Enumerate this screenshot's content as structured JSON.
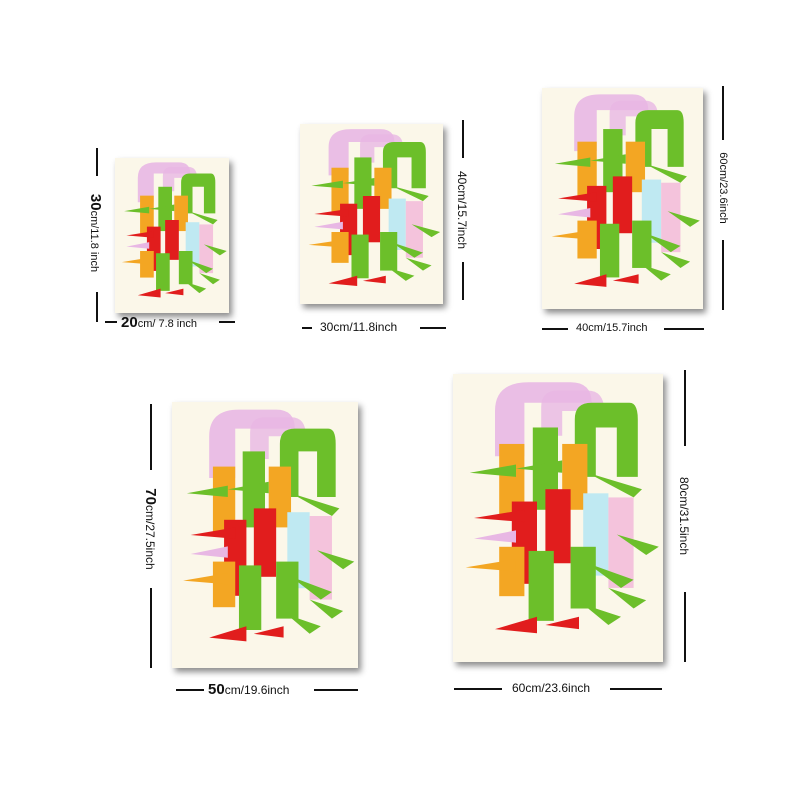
{
  "posters": [
    {
      "id": "20x30",
      "width": "20",
      "width_unit": "cm/ 7.8 inch",
      "height": "30",
      "height_unit": "cm/11.8 inch"
    },
    {
      "id": "30x40",
      "width": "30cm/11.8inch",
      "height": "40cm/15.7inch"
    },
    {
      "id": "40x60",
      "width": "40cm/15.7inch",
      "height": "60cm/23.6inch"
    },
    {
      "id": "50x70",
      "width": "50",
      "width_unit": "cm/19.6inch",
      "height": "70",
      "height_unit": "cm/27.5inch"
    },
    {
      "id": "60x80",
      "width": "60cm/23.6inch",
      "height": "80cm/31.5inch"
    }
  ],
  "colors": {
    "paper": "#fbf7e9",
    "pink": "#e8b7e4",
    "green": "#6cbf2a",
    "orange": "#f3a623",
    "red": "#e11d1d",
    "light_blue": "#bfe9f2",
    "light_pink": "#f4c3dc"
  }
}
